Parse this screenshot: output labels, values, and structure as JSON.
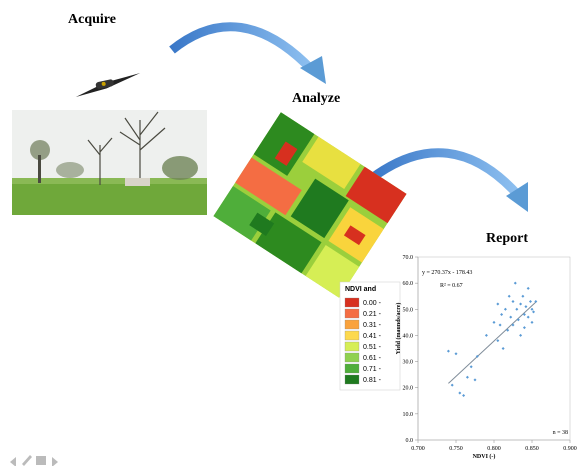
{
  "steps": {
    "acquire": "Acquire",
    "analyze": "Analyze",
    "report": "Report"
  },
  "legend": {
    "title": "NDVI and",
    "items": [
      {
        "label": "0.00 -",
        "color": "#d7301f"
      },
      {
        "label": "0.21 -",
        "color": "#f46d43"
      },
      {
        "label": "0.31 -",
        "color": "#f9a23c"
      },
      {
        "label": "0.41 -",
        "color": "#fdd94d"
      },
      {
        "label": "0.51 -",
        "color": "#d6ee55"
      },
      {
        "label": "0.61 -",
        "color": "#8fd14f"
      },
      {
        "label": "0.71 -",
        "color": "#4fae3a"
      },
      {
        "label": "0.81 -",
        "color": "#1f7a1f"
      }
    ]
  },
  "chart_data": {
    "type": "scatter",
    "annotations": [
      "y = 270.37x - 178.43",
      "R² = 0.67",
      "n = 38"
    ],
    "x_label": "NDVI (-)",
    "y_label": "Yield (maunds/acre)",
    "x": [
      0.74,
      0.745,
      0.75,
      0.755,
      0.76,
      0.765,
      0.77,
      0.775,
      0.778,
      0.79,
      0.8,
      0.805,
      0.805,
      0.81,
      0.812,
      0.815,
      0.818,
      0.82,
      0.822,
      0.825,
      0.825,
      0.828,
      0.83,
      0.832,
      0.835,
      0.835,
      0.838,
      0.84,
      0.84,
      0.842,
      0.845,
      0.845,
      0.848,
      0.85,
      0.85,
      0.852,
      0.855,
      0.808
    ],
    "y": [
      34,
      21,
      33,
      18,
      17,
      24,
      28,
      23,
      32,
      40,
      45,
      52,
      38,
      48,
      35,
      50,
      42,
      55,
      47,
      53,
      44,
      60,
      50,
      46,
      52,
      40,
      55,
      48,
      43,
      51,
      58,
      47,
      53,
      50,
      45,
      49,
      53,
      44
    ],
    "color": "#5b9bd5",
    "xlim": [
      0.7,
      0.9
    ],
    "xticks": [
      {
        "value": 0.7,
        "label": "0.700"
      },
      {
        "value": 0.75,
        "label": "0.750"
      },
      {
        "value": 0.8,
        "label": "0.800"
      },
      {
        "value": 0.85,
        "label": "0.850"
      },
      {
        "value": 0.9,
        "label": "0.900"
      }
    ],
    "ylim": [
      0,
      70
    ],
    "yticks": [
      {
        "value": 0,
        "label": "0.0"
      },
      {
        "value": 10,
        "label": "10.0"
      },
      {
        "value": 20,
        "label": "20.0"
      },
      {
        "value": 30,
        "label": "30.0"
      },
      {
        "value": 40,
        "label": "40.0"
      },
      {
        "value": 50,
        "label": "50.0"
      },
      {
        "value": 60,
        "label": "60.0"
      },
      {
        "value": 70,
        "label": "70.0"
      }
    ],
    "trendline": {
      "slope": 270.37,
      "intercept": -178.43,
      "color": "#7f8c99"
    }
  }
}
